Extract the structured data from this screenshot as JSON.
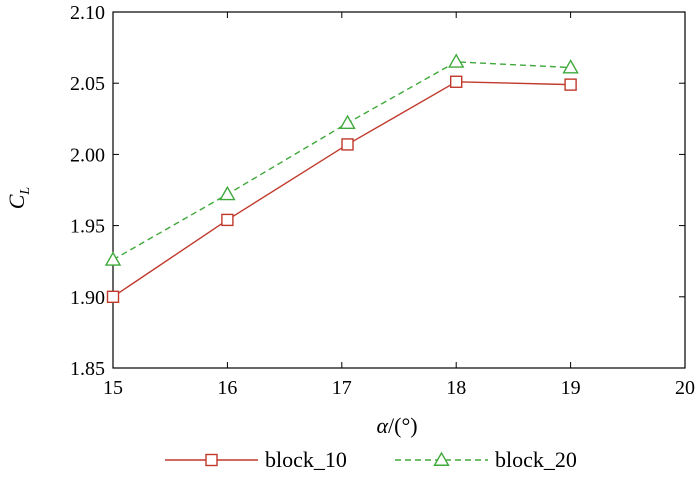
{
  "chart_data": {
    "type": "line",
    "title": "",
    "xlabel_main": "α",
    "xlabel_unit": "/(°)",
    "ylabel_main": "C",
    "ylabel_sub": "L",
    "xlim": [
      15,
      20
    ],
    "ylim": [
      1.85,
      2.1
    ],
    "xticks": [
      "15",
      "16",
      "17",
      "18",
      "19",
      "20"
    ],
    "yticks": [
      "1.85",
      "1.90",
      "1.95",
      "2.00",
      "2.05",
      "2.10"
    ],
    "grid": false,
    "legend_position": "bottom",
    "series": [
      {
        "name": "block_10",
        "color": "#c0392b",
        "dash": "solid",
        "marker": "square",
        "x": [
          15,
          16,
          17.05,
          18,
          19
        ],
        "y": [
          1.9,
          1.954,
          2.007,
          2.051,
          2.049
        ]
      },
      {
        "name": "block_20",
        "color": "#3fa83a",
        "dash": "dashed",
        "marker": "triangle",
        "x": [
          15,
          16,
          17.05,
          18,
          19
        ],
        "y": [
          1.926,
          1.972,
          2.022,
          2.065,
          2.061
        ]
      }
    ]
  }
}
